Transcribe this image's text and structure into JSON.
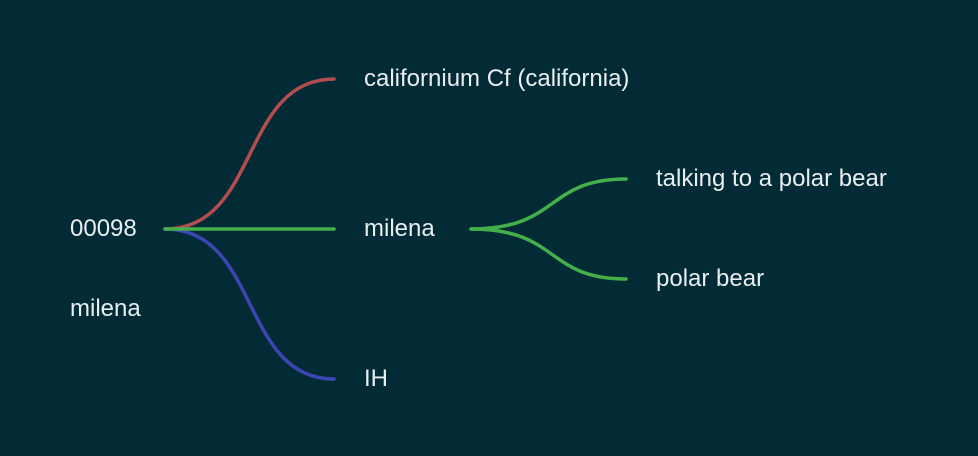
{
  "diagram": {
    "root": {
      "label": "00098",
      "sublabel": "milena"
    },
    "branches": [
      {
        "id": "cf",
        "label": "californium Cf (california)",
        "color": "#b34d4f"
      },
      {
        "id": "milena",
        "label": "milena",
        "color": "#44b049"
      },
      {
        "id": "ih",
        "label": "IH",
        "color": "#3d45b3"
      }
    ],
    "sub_branches": [
      {
        "parent": "milena",
        "label": "talking to a polar bear",
        "color": "#44b049"
      },
      {
        "parent": "milena",
        "label": "polar bear",
        "color": "#44b049"
      }
    ]
  },
  "colors": {
    "background": "#022b35",
    "text": "#e9eef0"
  }
}
